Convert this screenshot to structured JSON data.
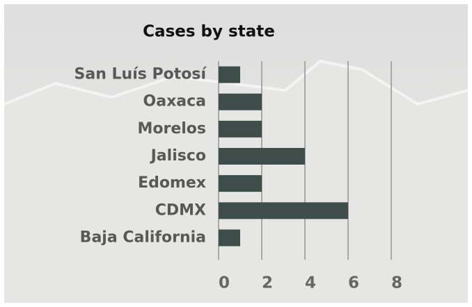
{
  "chart_data": {
    "type": "bar",
    "orientation": "horizontal",
    "title": "Cases by state",
    "categories": [
      "San Luís Potosí",
      "Oaxaca",
      "Morelos",
      "Jalisco",
      "Edomex",
      "CDMX",
      "Baja California"
    ],
    "values": [
      1,
      2,
      2,
      4,
      2,
      6,
      1
    ],
    "color": "#3e4d4a",
    "xlim": [
      0,
      8
    ],
    "xticks": [
      0,
      2,
      4,
      6,
      8
    ],
    "grid": true
  }
}
